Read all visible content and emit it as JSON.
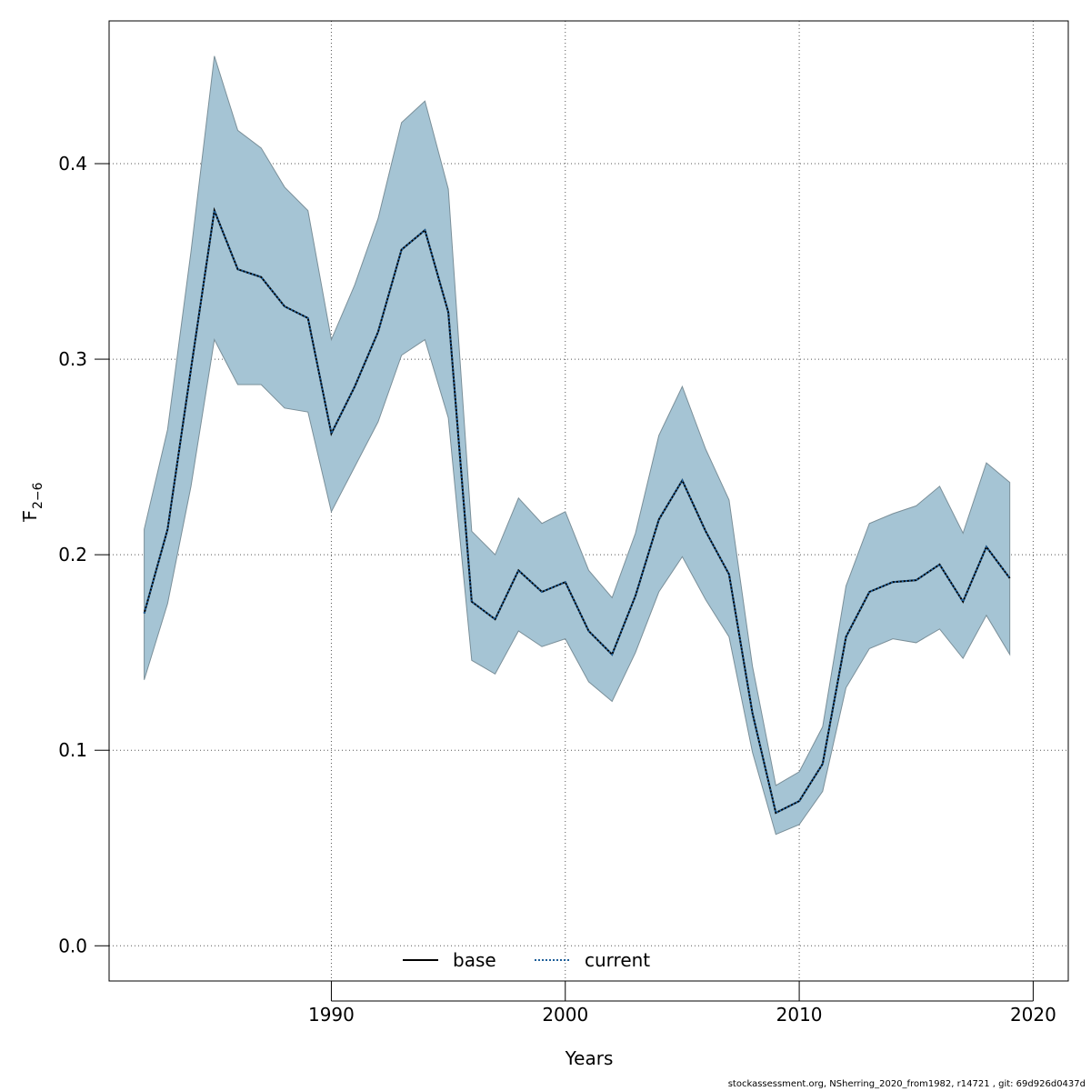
{
  "chart_data": {
    "type": "area",
    "xlabel": "Years",
    "ylabel_main": "F",
    "ylabel_sub": "2−6",
    "xlim": [
      1980.5,
      2021.5
    ],
    "ylim": [
      -0.018,
      0.473
    ],
    "x_ticks": [
      1990,
      2000,
      2010,
      2020
    ],
    "y_ticks": [
      0.0,
      0.1,
      0.2,
      0.3,
      0.4
    ],
    "y_tick_labels": [
      "0.0",
      "0.1",
      "0.2",
      "0.3",
      "0.4"
    ],
    "grid": true,
    "legend_position": "bottom-center",
    "band_color": "#a5c4d4",
    "line_color": "#000000",
    "current_color": "#1f5f99",
    "x": [
      1982,
      1983,
      1984,
      1985,
      1986,
      1987,
      1988,
      1989,
      1990,
      1991,
      1992,
      1993,
      1994,
      1995,
      1996,
      1997,
      1998,
      1999,
      2000,
      2001,
      2002,
      2003,
      2004,
      2005,
      2006,
      2007,
      2008,
      2009,
      2010,
      2011,
      2012,
      2013,
      2014,
      2015,
      2016,
      2017,
      2018,
      2019
    ],
    "lower": [
      0.136,
      0.175,
      0.235,
      0.31,
      0.287,
      0.287,
      0.275,
      0.273,
      0.222,
      0.245,
      0.268,
      0.302,
      0.31,
      0.27,
      0.146,
      0.139,
      0.161,
      0.153,
      0.157,
      0.135,
      0.125,
      0.15,
      0.181,
      0.199,
      0.177,
      0.158,
      0.099,
      0.057,
      0.062,
      0.079,
      0.132,
      0.152,
      0.157,
      0.155,
      0.162,
      0.147,
      0.169,
      0.149
    ],
    "upper": [
      0.213,
      0.264,
      0.355,
      0.455,
      0.417,
      0.408,
      0.388,
      0.376,
      0.31,
      0.338,
      0.372,
      0.421,
      0.432,
      0.387,
      0.212,
      0.2,
      0.229,
      0.216,
      0.222,
      0.192,
      0.178,
      0.211,
      0.261,
      0.286,
      0.254,
      0.228,
      0.143,
      0.082,
      0.089,
      0.112,
      0.184,
      0.216,
      0.221,
      0.225,
      0.235,
      0.211,
      0.247,
      0.237
    ],
    "series": [
      {
        "name": "base",
        "values": [
          0.17,
          0.213,
          0.295,
          0.376,
          0.346,
          0.342,
          0.327,
          0.321,
          0.262,
          0.286,
          0.314,
          0.356,
          0.366,
          0.324,
          0.176,
          0.167,
          0.192,
          0.181,
          0.186,
          0.161,
          0.149,
          0.179,
          0.218,
          0.238,
          0.212,
          0.19,
          0.119,
          0.068,
          0.074,
          0.093,
          0.158,
          0.181,
          0.186,
          0.187,
          0.195,
          0.176,
          0.204,
          0.188
        ]
      },
      {
        "name": "current",
        "values": [
          0.17,
          0.213,
          0.295,
          0.376,
          0.346,
          0.342,
          0.327,
          0.321,
          0.262,
          0.286,
          0.314,
          0.356,
          0.366,
          0.324,
          0.176,
          0.167,
          0.192,
          0.181,
          0.186,
          0.161,
          0.149,
          0.179,
          0.218,
          0.238,
          0.212,
          0.19,
          0.119,
          0.068,
          0.074,
          0.093,
          0.158,
          0.181,
          0.186,
          0.187,
          0.195,
          0.176,
          0.204,
          0.188
        ]
      }
    ]
  },
  "footer": {
    "text": "stockassessment.org, NSherring_2020_from1982, r14721 , git: 69d926d0437d"
  }
}
